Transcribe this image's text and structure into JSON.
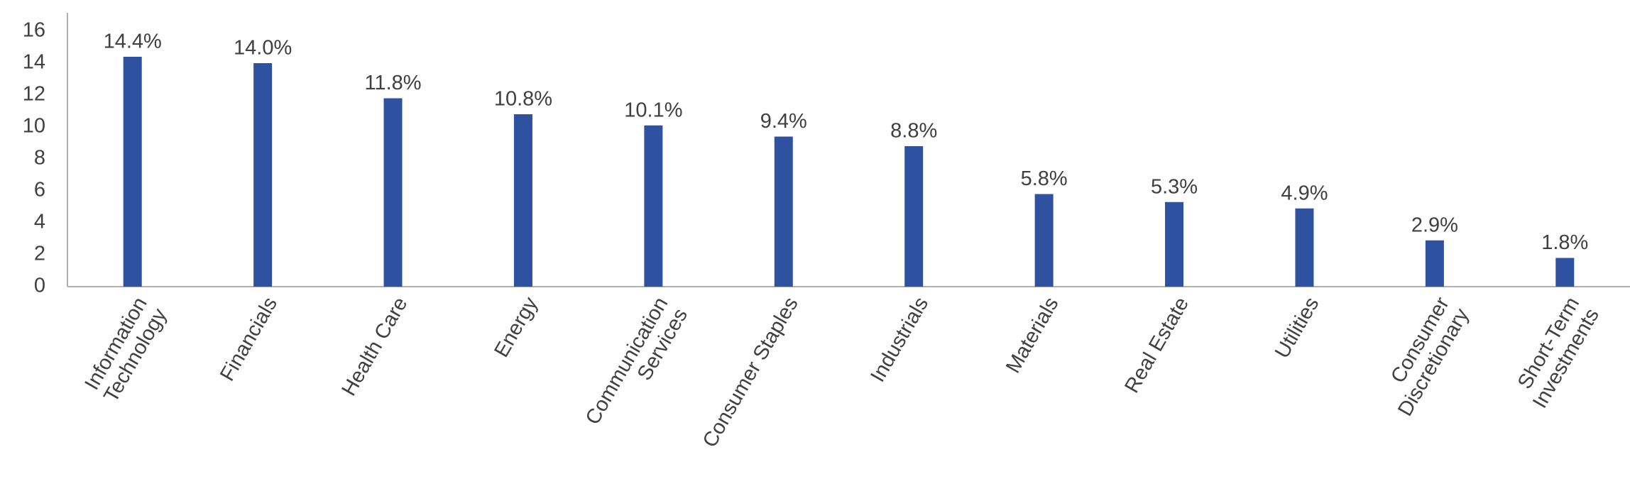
{
  "chart_data": {
    "type": "bar",
    "categories": [
      "Information\nTechnology",
      "Financials",
      "Health Care",
      "Energy",
      "Communication\nServices",
      "Consumer Staples",
      "Industrials",
      "Materials",
      "Real Estate",
      "Utilities",
      "Consumer\nDiscretionary",
      "Short-Term\nInvestments"
    ],
    "values": [
      14.4,
      14.0,
      11.8,
      10.8,
      10.1,
      9.4,
      8.8,
      5.8,
      5.3,
      4.9,
      2.9,
      1.8
    ],
    "value_labels": [
      "14.4%",
      "14.0%",
      "11.8%",
      "10.8%",
      "10.1%",
      "9.4%",
      "8.8%",
      "5.8%",
      "5.3%",
      "4.9%",
      "2.9%",
      "1.8%"
    ],
    "color": "#2e52a0",
    "ylim": [
      0,
      17
    ],
    "yticks": [
      0,
      2,
      4,
      6,
      8,
      10,
      12,
      14,
      16
    ],
    "grid": false
  }
}
